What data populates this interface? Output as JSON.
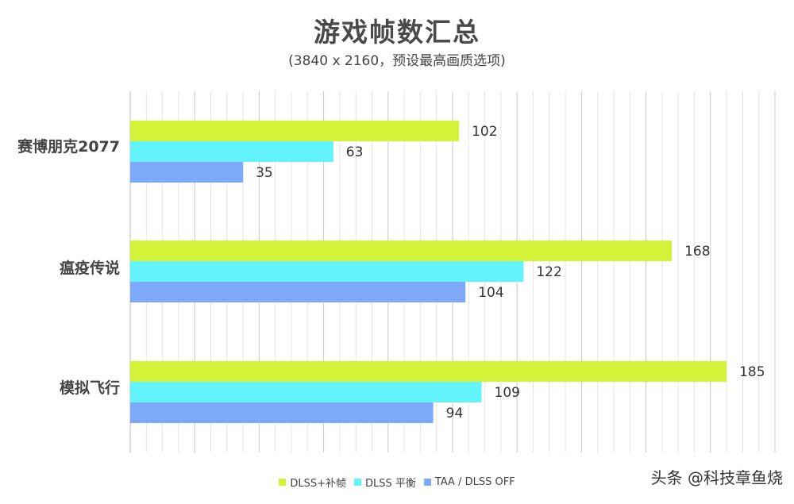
{
  "chart_data": {
    "type": "bar",
    "orientation": "horizontal",
    "title": "游戏帧数汇总",
    "subtitle": "(3840 x 2160，预设最高画质选项)",
    "categories": [
      "赛博朋克2077",
      "瘟疫传说",
      "模拟飞行"
    ],
    "series": [
      {
        "name": "DLSS+补帧",
        "color": "#d4f237",
        "values": [
          102,
          168,
          185
        ]
      },
      {
        "name": "DLSS 平衡",
        "color": "#62f4fa",
        "values": [
          63,
          122,
          109
        ]
      },
      {
        "name": "TAA / DLSS OFF",
        "color": "#7ea9fb",
        "values": [
          35,
          104,
          94
        ]
      }
    ],
    "xlim": [
      0,
      200
    ],
    "grid": true,
    "legend_position": "bottom"
  },
  "watermark": "头条 @科技章鱼烧"
}
